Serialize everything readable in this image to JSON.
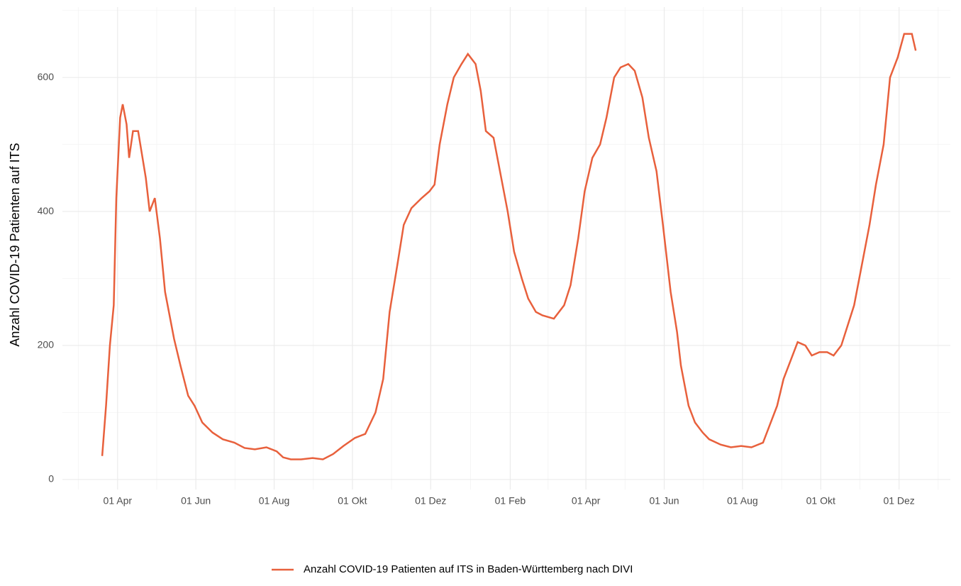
{
  "chart_data": {
    "type": "line",
    "y_label": "Anzahl COVID-19 Patienten auf ITS",
    "x": [
      -12,
      -9,
      -6,
      -3,
      -1,
      2,
      4,
      7,
      9,
      12,
      16,
      22,
      25,
      29,
      33,
      37,
      40,
      44,
      49,
      55,
      60,
      66,
      74,
      82,
      91,
      99,
      107,
      116,
      124,
      129,
      135,
      143,
      152,
      160,
      168,
      176,
      185,
      193,
      201,
      207,
      212,
      218,
      223,
      229,
      237,
      243,
      247,
      251,
      257,
      262,
      268,
      273,
      279,
      283,
      287,
      293,
      298,
      304,
      309,
      315,
      320,
      326,
      331,
      340,
      348,
      353,
      359,
      364,
      370,
      376,
      381,
      387,
      392,
      398,
      403,
      409,
      414,
      420,
      425,
      431,
      436,
      439,
      445,
      450,
      456,
      461,
      470,
      478,
      486,
      494,
      503,
      508,
      514,
      519,
      525,
      530,
      536,
      541,
      547,
      553,
      558,
      564,
      569,
      574,
      580,
      586,
      591,
      597,
      602,
      608,
      613,
      619,
      622
    ],
    "series": [
      {
        "name": "Anzahl COVID-19 Patienten auf ITS in Baden-Württemberg nach DIVI",
        "color": "#e8603c",
        "values": [
          35,
          110,
          200,
          260,
          420,
          540,
          560,
          530,
          480,
          520,
          520,
          450,
          400,
          420,
          360,
          280,
          250,
          210,
          170,
          125,
          110,
          85,
          70,
          60,
          55,
          47,
          45,
          48,
          42,
          33,
          30,
          30,
          32,
          30,
          38,
          50,
          62,
          68,
          100,
          150,
          250,
          320,
          380,
          405,
          420,
          430,
          440,
          500,
          560,
          600,
          620,
          635,
          620,
          580,
          520,
          510,
          460,
          400,
          340,
          300,
          270,
          250,
          245,
          240,
          260,
          290,
          360,
          430,
          480,
          500,
          540,
          600,
          615,
          620,
          610,
          570,
          510,
          460,
          380,
          280,
          220,
          170,
          110,
          85,
          70,
          60,
          52,
          48,
          50,
          48,
          55,
          80,
          110,
          150,
          180,
          205,
          200,
          185,
          190,
          190,
          185,
          200,
          230,
          260,
          320,
          380,
          440,
          500,
          600,
          630,
          665,
          665,
          640
        ]
      }
    ],
    "xlim": [
      -43,
      649
    ],
    "xticks": [
      {
        "value": 0,
        "label": "01 Apr"
      },
      {
        "value": 61,
        "label": "01 Jun"
      },
      {
        "value": 122,
        "label": "01 Aug"
      },
      {
        "value": 183,
        "label": "01 Okt"
      },
      {
        "value": 244,
        "label": "01 Dez"
      },
      {
        "value": 306,
        "label": "01 Feb"
      },
      {
        "value": 365,
        "label": "01 Apr"
      },
      {
        "value": 426,
        "label": "01 Jun"
      },
      {
        "value": 487,
        "label": "01 Aug"
      },
      {
        "value": 548,
        "label": "01 Okt"
      },
      {
        "value": 609,
        "label": "01 Dez"
      }
    ],
    "ylim": [
      -15,
      705
    ],
    "yticks": [
      0,
      200,
      400,
      600
    ],
    "grid": true,
    "legend": "bottom"
  }
}
